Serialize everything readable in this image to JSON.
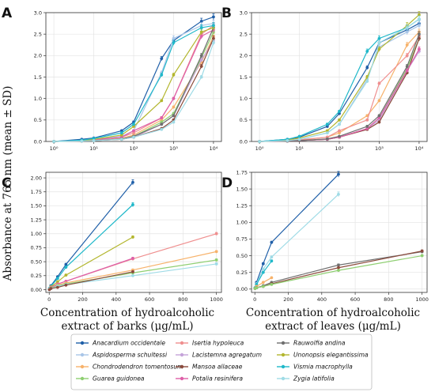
{
  "ylabel": "Absorbance at 765 nm (mean ± SD)",
  "species": [
    {
      "name": "Anacardium occidentale",
      "color": "#1f5fa8"
    },
    {
      "name": "Aspidosperma schultessi",
      "color": "#a9c6e8"
    },
    {
      "name": "Chondrodendron tomentosum",
      "color": "#f7b26b"
    },
    {
      "name": "Guarea guidonea",
      "color": "#8fcf72"
    },
    {
      "name": "Isertia hypoleuca",
      "color": "#ef8f8f"
    },
    {
      "name": "Lacistemna agregatum",
      "color": "#c5a3d9"
    },
    {
      "name": "Mansoa allaceae",
      "color": "#8b4a3c"
    },
    {
      "name": "Potalia resinifera",
      "color": "#de5fa8"
    },
    {
      "name": "Rauwolfia andina",
      "color": "#6f6f6f"
    },
    {
      "name": "Unonopsis elegantissima",
      "color": "#b3b62e"
    },
    {
      "name": "Vismia macrophylla",
      "color": "#1fb8c9"
    },
    {
      "name": "Zygia latifolia",
      "color": "#9fdbe6"
    }
  ],
  "chart_data": [
    {
      "panel": "A",
      "type": "line",
      "xscale": "log",
      "xticks": [
        "10⁰",
        "10¹",
        "10²",
        "10³",
        "10⁴"
      ],
      "xlim": [
        1,
        10000
      ],
      "ylim": [
        0,
        3.0
      ],
      "yticks": [
        "0.0",
        "0.5",
        "1.0",
        "1.5",
        "2.0",
        "2.5",
        "3.0"
      ],
      "x": [
        1,
        5,
        10,
        50,
        100,
        500,
        1000,
        5000,
        10000
      ],
      "series": [
        {
          "name": "Anacardium occidentale",
          "values": [
            0.0,
            0.05,
            0.08,
            0.25,
            0.45,
            1.93,
            2.35,
            2.8,
            2.9
          ]
        },
        {
          "name": "Aspidosperma schultessi",
          "values": [
            0.0,
            0.02,
            0.04,
            0.12,
            0.25,
            1.6,
            2.4,
            2.7,
            2.75
          ]
        },
        {
          "name": "Chondrodendron tomentosum",
          "values": [
            0.0,
            0.01,
            0.02,
            0.07,
            0.15,
            0.5,
            0.8,
            1.85,
            2.45
          ]
        },
        {
          "name": "Guarea guidonea",
          "values": [
            0.0,
            0.01,
            0.02,
            0.05,
            0.12,
            0.45,
            0.65,
            1.95,
            2.55
          ]
        },
        {
          "name": "Isertia hypoleuca",
          "values": [
            0.0,
            0.01,
            0.03,
            0.1,
            0.2,
            0.55,
            1.0,
            2.5,
            2.7
          ]
        },
        {
          "name": "Lacistemna agregatum",
          "values": [
            0.0,
            0.01,
            0.02,
            0.05,
            0.1,
            0.4,
            0.6,
            1.9,
            2.35
          ]
        },
        {
          "name": "Mansoa allaceae",
          "values": [
            0.0,
            0.01,
            0.02,
            0.05,
            0.1,
            0.3,
            0.5,
            1.75,
            2.4
          ]
        },
        {
          "name": "Potalia resinifera",
          "values": [
            0.0,
            0.02,
            0.04,
            0.1,
            0.25,
            0.55,
            1.0,
            2.45,
            2.6
          ]
        },
        {
          "name": "Rauwolfia andina",
          "values": [
            0.0,
            0.01,
            0.02,
            0.06,
            0.12,
            0.4,
            0.6,
            2.0,
            2.65
          ]
        },
        {
          "name": "Unonopsis elegantissima",
          "values": [
            0.0,
            0.02,
            0.05,
            0.15,
            0.35,
            0.95,
            1.55,
            2.55,
            2.65
          ]
        },
        {
          "name": "Vismia macrophylla",
          "values": [
            0.0,
            0.03,
            0.07,
            0.2,
            0.4,
            1.55,
            2.3,
            2.65,
            2.7
          ]
        },
        {
          "name": "Zygia latifolia",
          "values": [
            0.0,
            0.01,
            0.02,
            0.05,
            0.1,
            0.28,
            0.45,
            1.5,
            2.3
          ]
        }
      ]
    },
    {
      "panel": "B",
      "type": "line",
      "xscale": "log",
      "xticks": [
        "10⁰",
        "10¹",
        "10²",
        "10³",
        "10⁴"
      ],
      "xlim": [
        1,
        10000
      ],
      "ylim": [
        0,
        3.0
      ],
      "yticks": [
        "0.0",
        "0.5",
        "1.0",
        "1.5",
        "2.0",
        "2.5",
        "3.0"
      ],
      "x": [
        1,
        5,
        10,
        50,
        100,
        500,
        1000,
        5000,
        10000
      ],
      "series": [
        {
          "name": "Anacardium occidentale",
          "values": [
            0.0,
            0.05,
            0.1,
            0.35,
            0.65,
            1.72,
            2.3,
            2.6,
            2.75
          ]
        },
        {
          "name": "Aspidosperma schultessi",
          "values": [
            0.0,
            0.02,
            0.05,
            0.2,
            0.4,
            1.45,
            2.2,
            2.55,
            2.7
          ]
        },
        {
          "name": "Chondrodendron tomentosum",
          "values": [
            0.0,
            0.01,
            0.03,
            0.1,
            0.2,
            0.6,
            0.95,
            2.25,
            2.55
          ]
        },
        {
          "name": "Guarea guidonea",
          "values": [
            0.0,
            0.01,
            0.02,
            0.05,
            0.1,
            0.3,
            0.55,
            1.7,
            2.4
          ]
        },
        {
          "name": "Isertia hypoleuca",
          "values": [
            0.0,
            0.02,
            0.04,
            0.1,
            0.25,
            0.5,
            1.35,
            2.0,
            2.45
          ]
        },
        {
          "name": "Lacistemna agregatum",
          "values": [
            0.0,
            0.01,
            0.02,
            0.05,
            0.1,
            0.3,
            0.5,
            1.65,
            2.1
          ]
        },
        {
          "name": "Mansoa allaceae",
          "values": [
            0.0,
            0.01,
            0.02,
            0.05,
            0.1,
            0.28,
            0.45,
            1.6,
            2.4
          ]
        },
        {
          "name": "Potalia resinifera",
          "values": [
            0.0,
            0.01,
            0.02,
            0.05,
            0.1,
            0.3,
            0.55,
            1.65,
            2.15
          ]
        },
        {
          "name": "Rauwolfia andina",
          "values": [
            0.0,
            0.01,
            0.02,
            0.06,
            0.12,
            0.35,
            0.6,
            1.75,
            2.5
          ]
        },
        {
          "name": "Unonopsis elegantissima",
          "values": [
            0.0,
            0.03,
            0.08,
            0.25,
            0.5,
            1.5,
            2.15,
            2.7,
            2.95
          ]
        },
        {
          "name": "Vismia macrophylla",
          "values": [
            0.0,
            0.05,
            0.12,
            0.4,
            0.7,
            2.1,
            2.4,
            2.65,
            2.85
          ]
        },
        {
          "name": "Zygia latifolia",
          "values": [
            0.0,
            0.02,
            0.05,
            0.2,
            0.4,
            1.4,
            2.3,
            2.65,
            2.85
          ]
        }
      ]
    },
    {
      "panel": "C",
      "type": "line",
      "xscale": "linear",
      "xticks": [
        "0",
        "200",
        "400",
        "600",
        "800",
        "1000"
      ],
      "xlim": [
        -20,
        1030
      ],
      "ylim": [
        -0.05,
        2.1
      ],
      "yticks": [
        "0.00",
        "0.25",
        "0.50",
        "0.75",
        "1.00",
        "1.25",
        "1.50",
        "1.75",
        "2.00"
      ],
      "xlabel": "Concentration of hydroalcoholic extract of barks (μg/mL)",
      "series": [
        {
          "name": "Anacardium occidentale",
          "x": [
            1,
            10,
            50,
            100,
            500
          ],
          "values": [
            0.02,
            0.07,
            0.23,
            0.45,
            1.92
          ]
        },
        {
          "name": "Vismia macrophylla",
          "x": [
            1,
            10,
            50,
            100,
            500
          ],
          "values": [
            0.02,
            0.06,
            0.2,
            0.4,
            1.52
          ]
        },
        {
          "name": "Unonopsis elegantissima",
          "x": [
            1,
            10,
            50,
            100,
            500
          ],
          "values": [
            0.01,
            0.05,
            0.14,
            0.26,
            0.94
          ]
        },
        {
          "name": "Isertia hypoleuca",
          "x": [
            1,
            10,
            50,
            100,
            500,
            1000
          ],
          "values": [
            0.01,
            0.04,
            0.1,
            0.15,
            0.55,
            1.0
          ]
        },
        {
          "name": "Potalia resinifera",
          "x": [
            1,
            10,
            50,
            100,
            500
          ],
          "values": [
            0.01,
            0.04,
            0.1,
            0.15,
            0.56
          ]
        },
        {
          "name": "Chondrodendron tomentosum",
          "x": [
            1,
            10,
            50,
            100,
            500,
            1000
          ],
          "values": [
            0.01,
            0.03,
            0.08,
            0.12,
            0.35,
            0.68
          ]
        },
        {
          "name": "Guarea guidonea",
          "x": [
            1,
            10,
            50,
            100,
            500,
            1000
          ],
          "values": [
            0.01,
            0.03,
            0.07,
            0.1,
            0.3,
            0.53
          ]
        },
        {
          "name": "Zygia latifolia",
          "x": [
            1,
            10,
            50,
            100,
            500,
            1000
          ],
          "values": [
            0.01,
            0.02,
            0.06,
            0.09,
            0.25,
            0.46
          ]
        },
        {
          "name": "Mansoa allaceae",
          "x": [
            1,
            10,
            50,
            100,
            500
          ],
          "values": [
            0.0,
            0.02,
            0.04,
            0.08,
            0.32
          ]
        }
      ]
    },
    {
      "panel": "D",
      "type": "line",
      "xscale": "linear",
      "xticks": [
        "0",
        "200",
        "400",
        "600",
        "800",
        "1000"
      ],
      "xlim": [
        -20,
        1030
      ],
      "ylim": [
        -0.05,
        1.75
      ],
      "yticks": [
        "0.00",
        "0.25",
        "0.50",
        "0.75",
        "1.00",
        "1.25",
        "1.50",
        "1.75"
      ],
      "xlabel": "Concentration of hydroalcoholic extract of leaves (μg/mL)",
      "series": [
        {
          "name": "Anacardium occidentale",
          "x": [
            1,
            10,
            50,
            100,
            500
          ],
          "values": [
            0.02,
            0.1,
            0.38,
            0.7,
            1.72
          ]
        },
        {
          "name": "Zygia latifolia",
          "x": [
            1,
            10,
            50,
            100,
            500
          ],
          "values": [
            0.02,
            0.08,
            0.3,
            0.48,
            1.42
          ]
        },
        {
          "name": "Vismia macrophylla",
          "x": [
            1,
            10,
            50,
            100
          ],
          "values": [
            0.02,
            0.07,
            0.25,
            0.42
          ]
        },
        {
          "name": "Chondrodendron tomentosum",
          "x": [
            1,
            10,
            50,
            100
          ],
          "values": [
            0.01,
            0.04,
            0.1,
            0.17
          ]
        },
        {
          "name": "Rauwolfia andina",
          "x": [
            1,
            10,
            50,
            100,
            500,
            1000
          ],
          "values": [
            0.01,
            0.02,
            0.05,
            0.1,
            0.36,
            0.56
          ]
        },
        {
          "name": "Mansoa allaceae",
          "x": [
            1,
            10,
            50,
            100,
            500,
            1000
          ],
          "values": [
            0.01,
            0.02,
            0.04,
            0.08,
            0.32,
            0.57
          ]
        },
        {
          "name": "Guarea guidonea",
          "x": [
            1,
            10,
            50,
            100,
            500,
            1000
          ],
          "values": [
            0.01,
            0.02,
            0.04,
            0.07,
            0.28,
            0.5
          ]
        }
      ]
    }
  ]
}
